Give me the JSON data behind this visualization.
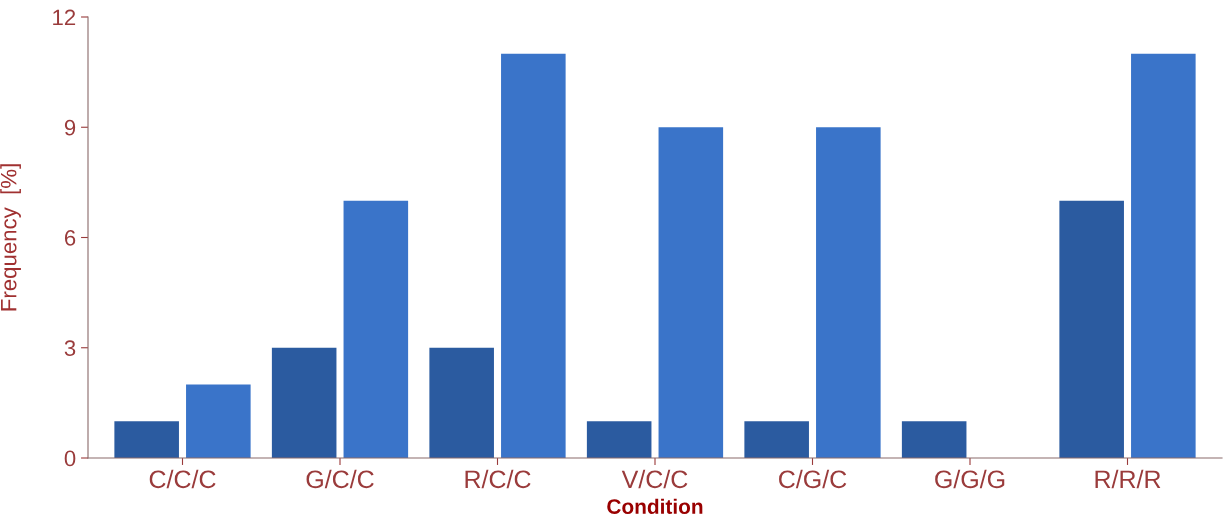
{
  "chart_data": {
    "type": "bar",
    "xlabel": "Condition",
    "ylabel": "Frequency  [%]",
    "categories": [
      "C/C/C",
      "G/C/C",
      "R/C/C",
      "V/C/C",
      "C/G/C",
      "G/G/G",
      "R/R/R"
    ],
    "series": [
      {
        "color": "#2b5ba0",
        "values": [
          1,
          3,
          3,
          1,
          1,
          1,
          7
        ]
      },
      {
        "color": "#3a74c9",
        "values": [
          2,
          7,
          11,
          9,
          9,
          null,
          11
        ]
      }
    ],
    "ylim": [
      0,
      12
    ],
    "yticks": [
      0,
      3,
      6,
      9,
      12
    ],
    "grid": false,
    "legend": false
  }
}
